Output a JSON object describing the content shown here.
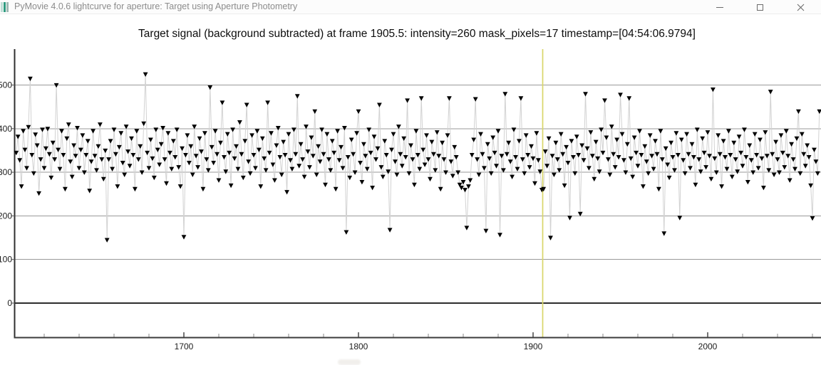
{
  "window": {
    "title": "PyMovie 4.0.6 lightcurve for aperture: Target using Aperture Photometry",
    "app_icon": "pymovie-app-icon",
    "controls": [
      {
        "name": "minimize"
      },
      {
        "name": "maximize"
      },
      {
        "name": "close"
      }
    ],
    "colors": {
      "titlebar_bg": "#fcfcfc",
      "title_text": "#8c8c8c",
      "icon_teal": "#2f9c80"
    }
  },
  "chart_data": {
    "type": "scatter",
    "title": "Target signal (background subtracted) at frame 1905.5: intensity=260 mask_pixels=17 timestamp=[04:54:06.9794]",
    "current": {
      "frame": 1905.5,
      "intensity": 260,
      "mask_pixels": 17,
      "timestamp": "[04:54:06.9794]"
    },
    "cursor": {
      "frame": 1905.5,
      "color": "#d8d66a"
    },
    "x_axis": {
      "label": "",
      "tick_labels": [
        1700,
        1800,
        1900,
        2000
      ],
      "minor_tick_step": 20,
      "range": [
        1604,
        2065
      ]
    },
    "y_axis": {
      "label": "",
      "ticks": [
        0,
        100,
        200,
        300,
        400,
        500
      ],
      "range": [
        -78,
        582
      ]
    },
    "grid": {
      "horizontal": true,
      "vertical": false,
      "grid_color": "#9a9a9a",
      "zero_line_color": "#2d2d2d"
    },
    "legend": "none",
    "series": {
      "name": "Target signal",
      "marker": "triangle-down",
      "marker_color": "#000000",
      "connector_color": "#d2d2d2",
      "frame_start": 1604,
      "frame_step": 1,
      "values": [
        345,
        382,
        328,
        268,
        395,
        352,
        310,
        404,
        515,
        340,
        298,
        387,
        362,
        252,
        330,
        398,
        310,
        355,
        400,
        342,
        288,
        368,
        330,
        500,
        352,
        308,
        395,
        340,
        262,
        378,
        410,
        325,
        290,
        362,
        338,
        402,
        310,
        352,
        385,
        300,
        340,
        372,
        258,
        325,
        395,
        338,
        305,
        360,
        410,
        330,
        285,
        350,
        145,
        330,
        372,
        308,
        398,
        342,
        268,
        358,
        390,
        322,
        295,
        405,
        348,
        315,
        378,
        340,
        262,
        395,
        330,
        360,
        300,
        412,
        525,
        345,
        310,
        375,
        332,
        288,
        398,
        352,
        318,
        365,
        402,
        330,
        275,
        390,
        345,
        308,
        372,
        335,
        398,
        312,
        268,
        355,
        152,
        340,
        385,
        322,
        360,
        295,
        405,
        338,
        312,
        378,
        348,
        262,
        390,
        330,
        305,
        495,
        358,
        322,
        395,
        342,
        282,
        368,
        460,
        335,
        302,
        388,
        345,
        270,
        398,
        332,
        360,
        308,
        415,
        342,
        288,
        372,
        455,
        325,
        298,
        385,
        340,
        310,
        395,
        352,
        268,
        378,
        332,
        305,
        460,
        345,
        390,
        318,
        282,
        362,
        402,
        335,
        295,
        370,
        340,
        255,
        388,
        328,
        308,
        398,
        342,
        475,
        315,
        365,
        330,
        290,
        405,
        348,
        312,
        380,
        338,
        440,
        295,
        360,
        325,
        398,
        342,
        272,
        388,
        330,
        305,
        372,
        345,
        262,
        395,
        328,
        358,
        310,
        402,
        163,
        335,
        288,
        375,
        342,
        300,
        390,
        440,
        322,
        278,
        365,
        338,
        308,
        398,
        345,
        265,
        382,
        330,
        355,
        455,
        312,
        290,
        372,
        340,
        302,
        168,
        352,
        388,
        325,
        295,
        405,
        342,
        315,
        378,
        335,
        465,
        298,
        362,
        330,
        272,
        395,
        340,
        308,
        470,
        352,
        318,
        385,
        330,
        285,
        370,
        342,
        305,
        392,
        338,
        262,
        368,
        330,
        300,
        385,
        470,
        325,
        292,
        358,
        335,
        300,
        272,
        265,
        278,
        260,
        173,
        268,
        282,
        340,
        375,
        468,
        330,
        295,
        388,
        342,
        310,
        166,
        365,
        332,
        298,
        380,
        345,
        315,
        395,
        157,
        338,
        305,
        480,
        342,
        368,
        325,
        290,
        398,
        335,
        308,
        372,
        470,
        330,
        298,
        385,
        340,
        312,
        360,
        332,
        275,
        390,
        328,
        302,
        260,
        262,
        348,
        315,
        378,
        150,
        338,
        295,
        368,
        330,
        305,
        388,
        342,
        270,
        358,
        322,
        196,
        372,
        335,
        298,
        382,
        340,
        205,
        362,
        328,
        480,
        355,
        310,
        392,
        338,
        285,
        370,
        332,
        302,
        398,
        345,
        465,
        380,
        330,
        295,
        405,
        342,
        312,
        375,
        335,
        478,
        388,
        328,
        300,
        365,
        470,
        332,
        290,
        380,
        345,
        315,
        395,
        340,
        268,
        360,
        325,
        298,
        385,
        338,
        308,
        372,
        342,
        262,
        395,
        330,
        160,
        355,
        318,
        288,
        368,
        335,
        305,
        390,
        340,
        196,
        375,
        328,
        298,
        388,
        342,
        310,
        365,
        335,
        272,
        398,
        330,
        302,
        378,
        345,
        312,
        392,
        338,
        285,
        490,
        332,
        300,
        385,
        342,
        268,
        372,
        335,
        308,
        395,
        340,
        290,
        368,
        330,
        302,
        382,
        345,
        315,
        398,
        335,
        278,
        362,
        328,
        300,
        388,
        340,
        310,
        375,
        332,
        265,
        392,
        338,
        305,
        485,
        342,
        295,
        370,
        330,
        300,
        385,
        345,
        312,
        395,
        338,
        282,
        365,
        330,
        308,
        378,
        440,
        298,
        388,
        342,
        315,
        362,
        335,
        270,
        195,
        352,
        325,
        298,
        440
      ]
    }
  }
}
